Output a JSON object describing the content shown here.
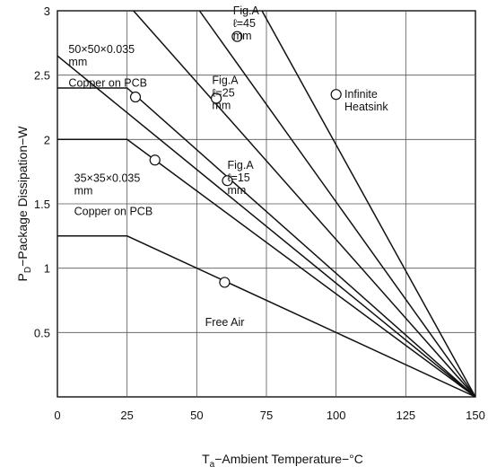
{
  "chart_data": {
    "type": "line",
    "xlabel_main": "T",
    "xlabel_sub": "a",
    "xlabel_rest": "−Ambient Temperature−°C",
    "ylabel_main": "P",
    "ylabel_sub": "D",
    "ylabel_rest": "−Package Dissipation−W",
    "xlim": [
      0,
      150
    ],
    "ylim": [
      0,
      3
    ],
    "xticks": [
      0,
      25,
      50,
      75,
      100,
      125,
      150
    ],
    "yticks": [
      0.5,
      1,
      1.5,
      2,
      2.5,
      3
    ],
    "xtick_labels": [
      "0",
      "25",
      "50",
      "75",
      "100",
      "125",
      "150"
    ],
    "ytick_labels": [
      "0.5",
      "1",
      "1.5",
      "2",
      "2.5",
      "3"
    ],
    "grid": true,
    "series": [
      {
        "name": "Infinite Heatsink",
        "points": [
          [
            150,
            0
          ],
          [
            73.4,
            3
          ]
        ]
      },
      {
        "name": "Fig.A ℓ=45 mm",
        "points": [
          [
            150,
            0
          ],
          [
            51,
            3
          ]
        ]
      },
      {
        "name": "Fig.A ℓ=25 mm",
        "points": [
          [
            150,
            0
          ],
          [
            27.3,
            3
          ]
        ]
      },
      {
        "name": "50×50×0.035 mm Copper on PCB",
        "points": [
          [
            0,
            2.4
          ],
          [
            25,
            2.4
          ],
          [
            150,
            0
          ]
        ]
      },
      {
        "name": "35×35×0.035 mm Copper on PCB",
        "points": [
          [
            0,
            2.0
          ],
          [
            25,
            2.0
          ],
          [
            150,
            0
          ]
        ]
      },
      {
        "name": "Fig.A ℓ=15 mm",
        "points": [
          [
            150,
            0
          ],
          [
            0,
            2.65
          ]
        ]
      },
      {
        "name": "Free Air",
        "points": [
          [
            0,
            1.25
          ],
          [
            25,
            1.25
          ],
          [
            150,
            0
          ]
        ]
      }
    ],
    "annotations": [
      {
        "lines": [
          "Fig.A",
          "ℓ=45",
          "mm"
        ],
        "x": 63,
        "y": 3.0
      },
      {
        "lines": [
          "Fig.A",
          "ℓ=25",
          "mm"
        ],
        "x": 55.5,
        "y": 2.46
      },
      {
        "lines": [
          "Fig.A",
          "ℓ=15",
          "mm"
        ],
        "x": 61,
        "y": 1.8
      },
      {
        "lines": [
          "Infinite",
          "Heatsink"
        ],
        "x": 103,
        "y": 2.35
      },
      {
        "lines": [
          "50×50×0.035",
          "mm"
        ],
        "x": 4,
        "y": 2.7
      },
      {
        "lines": [
          "Copper on PCB"
        ],
        "x": 4,
        "y": 2.44
      },
      {
        "lines": [
          "35×35×0.035",
          "mm"
        ],
        "x": 6,
        "y": 1.7
      },
      {
        "lines": [
          "Copper on PCB"
        ],
        "x": 6,
        "y": 1.44
      },
      {
        "lines": [
          "Free Air"
        ],
        "x": 53,
        "y": 0.58
      }
    ],
    "markers": [
      {
        "name": "marker-l45",
        "x": 64.5,
        "y": 2.8
      },
      {
        "name": "marker-l25",
        "x": 57,
        "y": 2.32
      },
      {
        "name": "marker-infinite",
        "x": 100,
        "y": 2.35
      },
      {
        "name": "marker-50x50",
        "x": 28,
        "y": 2.33
      },
      {
        "name": "marker-35x35",
        "x": 35,
        "y": 1.84
      },
      {
        "name": "marker-l15",
        "x": 61,
        "y": 1.68
      },
      {
        "name": "marker-free-air",
        "x": 60,
        "y": 0.89
      }
    ]
  }
}
